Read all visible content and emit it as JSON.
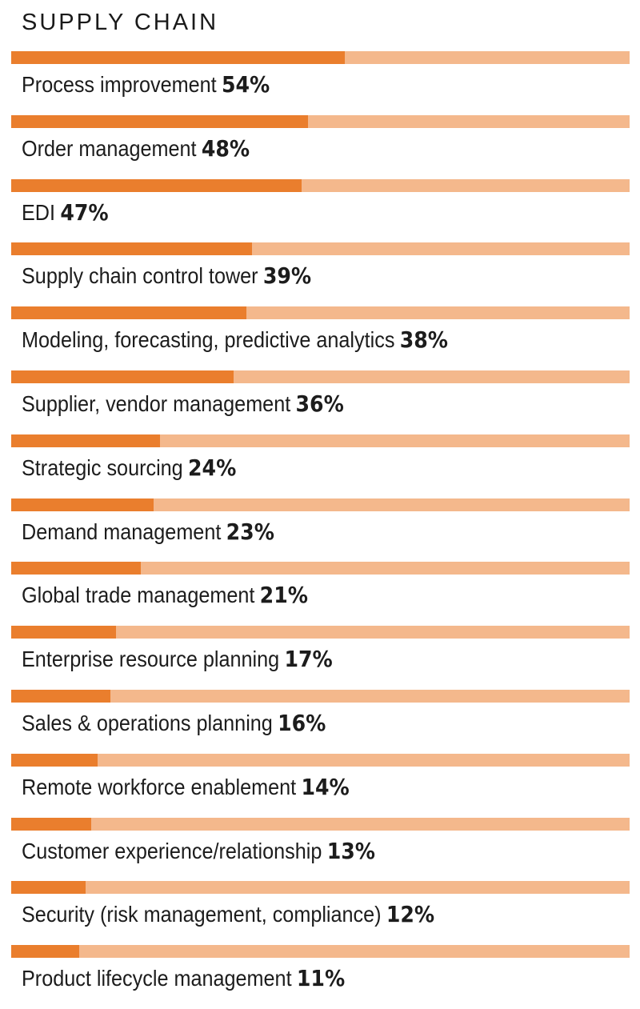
{
  "title": "SUPPLY CHAIN",
  "colors": {
    "bar_fill": "#ea7e2d",
    "bar_track": "#f4b88c"
  },
  "chart_data": {
    "type": "bar",
    "orientation": "horizontal",
    "title": "SUPPLY CHAIN",
    "xlim": [
      0,
      100
    ],
    "unit": "%",
    "categories": [
      "Process improvement",
      "Order management",
      "EDI",
      "Supply chain control tower",
      "Modeling, forecasting, predictive analytics",
      "Supplier, vendor management",
      "Strategic sourcing",
      "Demand management",
      "Global trade management",
      "Enterprise resource planning",
      "Sales & operations planning",
      "Remote workforce enablement",
      "Customer experience/relationship",
      "Security (risk management, compliance)",
      "Product lifecycle management"
    ],
    "values": [
      54,
      48,
      47,
      39,
      38,
      36,
      24,
      23,
      21,
      17,
      16,
      14,
      13,
      12,
      11
    ],
    "value_labels": [
      "54%",
      "48%",
      "47%",
      "39%",
      "38%",
      "36%",
      "24%",
      "23%",
      "21%",
      "17%",
      "16%",
      "14%",
      "13%",
      "12%",
      "11%"
    ]
  }
}
